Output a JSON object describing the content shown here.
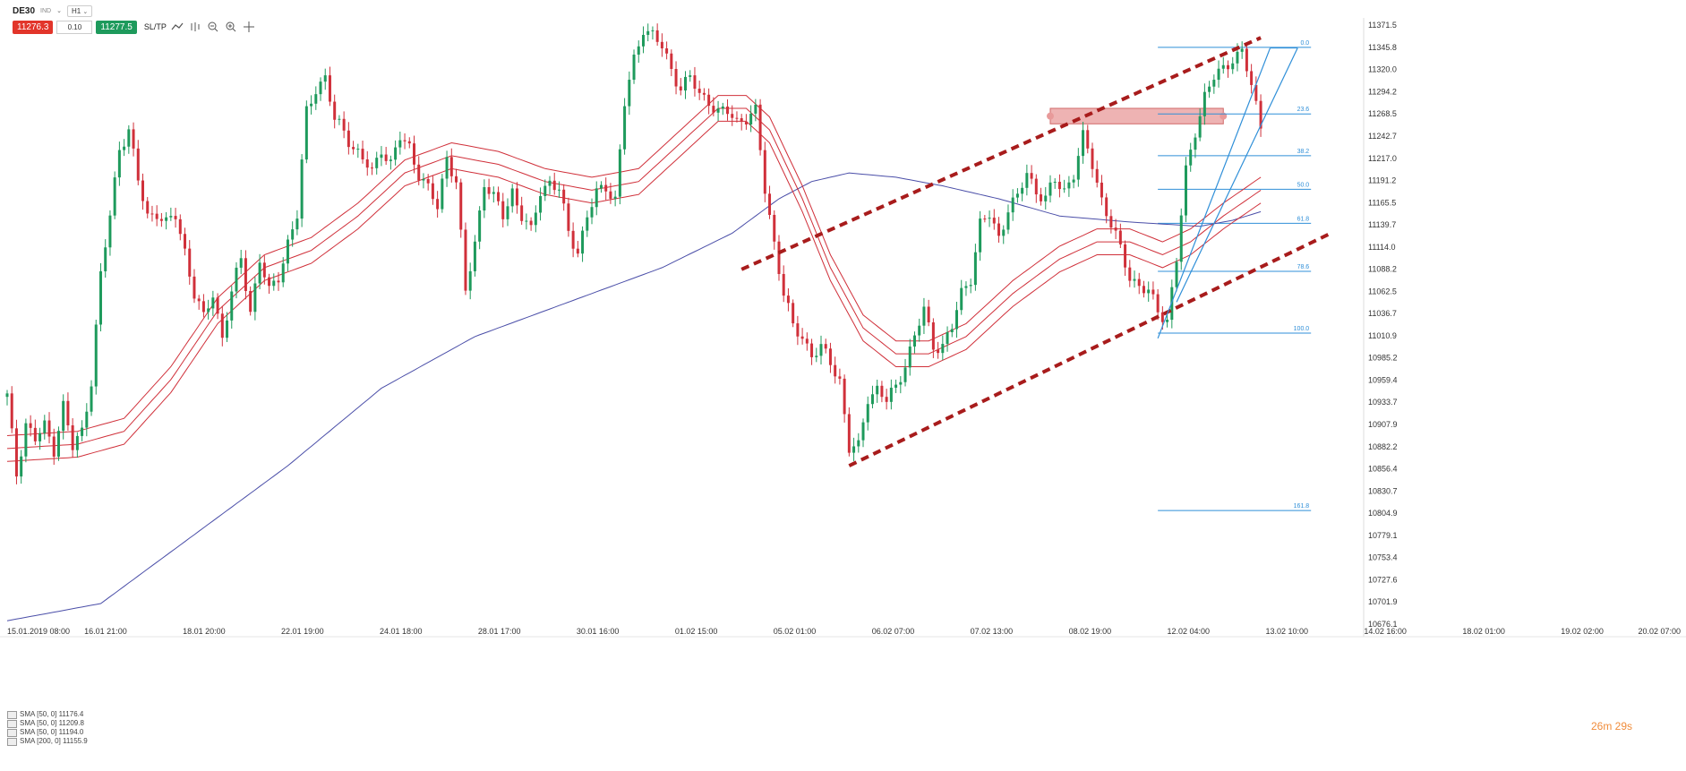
{
  "toolbar": {
    "symbol": "DE30",
    "tag": "IND",
    "timeframe": "H1",
    "sell_price": "11276.3",
    "quantity": "0.10",
    "buy_price": "11277.5",
    "sltp_label": "SL/TP",
    "tools": [
      "line-tool-icon",
      "chart-type-icon",
      "zoom-out-icon",
      "zoom-in-icon",
      "crosshair-icon"
    ]
  },
  "indicators": [
    {
      "label": "SMA [50, 0] 11176.4"
    },
    {
      "label": "SMA [50, 0] 11209.8"
    },
    {
      "label": "SMA [50, 0] 11194.0"
    },
    {
      "label": "SMA [200, 0] 11155.9"
    }
  ],
  "timer": "26m 29s",
  "colors": {
    "up": "#1e9a5c",
    "down": "#d0303a",
    "envelope": "#d0303a",
    "sma200": "#4a4ea8",
    "channel": "#a81c1c",
    "fib": "#2f8fd8",
    "zone": "#e89a9a"
  },
  "chart_data": {
    "type": "candlestick",
    "title": "",
    "xlabel": "",
    "ylabel": "",
    "ylim": [
      10676.1,
      11380.0
    ],
    "y_ticks": [
      11371.5,
      11345.8,
      11320.0,
      11294.2,
      11268.5,
      11242.7,
      11217.0,
      11191.2,
      11165.5,
      11139.7,
      11114.0,
      11088.2,
      11062.5,
      11036.7,
      11010.9,
      10985.2,
      10959.4,
      10933.7,
      10907.9,
      10882.2,
      10856.4,
      10830.7,
      10804.9,
      10779.1,
      10753.4,
      10727.6,
      10701.9,
      10676.1
    ],
    "x_ticks": [
      "15.01.2019 08:00",
      "16.01 21:00",
      "18.01 20:00",
      "22.01 19:00",
      "24.01 18:00",
      "28.01 17:00",
      "30.01 16:00",
      "01.02 15:00",
      "05.02 01:00",
      "06.02 07:00",
      "07.02 13:00",
      "08.02 19:00",
      "12.02 04:00",
      "13.02 10:00",
      "14.02 16:00",
      "18.02 01:00",
      "19.02 02:00",
      "20.02 07:00"
    ],
    "price_path": [
      [
        0,
        10940
      ],
      [
        2,
        10850
      ],
      [
        4,
        10910
      ],
      [
        6,
        10890
      ],
      [
        8,
        10905
      ],
      [
        10,
        10880
      ],
      [
        12,
        10930
      ],
      [
        14,
        10880
      ],
      [
        16,
        10900
      ],
      [
        18,
        10960
      ],
      [
        20,
        11080
      ],
      [
        22,
        11150
      ],
      [
        24,
        11230
      ],
      [
        26,
        11250
      ],
      [
        28,
        11190
      ],
      [
        30,
        11150
      ],
      [
        32,
        11155
      ],
      [
        34,
        11140
      ],
      [
        36,
        11150
      ],
      [
        38,
        11110
      ],
      [
        40,
        11060
      ],
      [
        42,
        11030
      ],
      [
        44,
        11060
      ],
      [
        46,
        11010
      ],
      [
        48,
        11060
      ],
      [
        50,
        11100
      ],
      [
        52,
        11040
      ],
      [
        54,
        11100
      ],
      [
        56,
        11060
      ],
      [
        58,
        11080
      ],
      [
        60,
        11120
      ],
      [
        62,
        11150
      ],
      [
        64,
        11270
      ],
      [
        66,
        11300
      ],
      [
        68,
        11310
      ],
      [
        70,
        11260
      ],
      [
        72,
        11250
      ],
      [
        74,
        11230
      ],
      [
        76,
        11215
      ],
      [
        78,
        11200
      ],
      [
        80,
        11230
      ],
      [
        82,
        11210
      ],
      [
        84,
        11240
      ],
      [
        86,
        11230
      ],
      [
        88,
        11200
      ],
      [
        90,
        11180
      ],
      [
        92,
        11160
      ],
      [
        94,
        11220
      ],
      [
        96,
        11190
      ],
      [
        98,
        11060
      ],
      [
        100,
        11120
      ],
      [
        102,
        11190
      ],
      [
        104,
        11170
      ],
      [
        106,
        11150
      ],
      [
        108,
        11180
      ],
      [
        110,
        11150
      ],
      [
        112,
        11130
      ],
      [
        114,
        11180
      ],
      [
        116,
        11190
      ],
      [
        118,
        11180
      ],
      [
        120,
        11130
      ],
      [
        122,
        11110
      ],
      [
        124,
        11150
      ],
      [
        126,
        11175
      ],
      [
        128,
        11185
      ],
      [
        130,
        11170
      ],
      [
        132,
        11280
      ],
      [
        134,
        11330
      ],
      [
        136,
        11370
      ],
      [
        138,
        11360
      ],
      [
        140,
        11345
      ],
      [
        142,
        11320
      ],
      [
        144,
        11300
      ],
      [
        146,
        11310
      ],
      [
        148,
        11290
      ],
      [
        150,
        11285
      ],
      [
        152,
        11270
      ],
      [
        154,
        11270
      ],
      [
        156,
        11260
      ],
      [
        158,
        11265
      ],
      [
        160,
        11270
      ],
      [
        162,
        11180
      ],
      [
        164,
        11120
      ],
      [
        166,
        11060
      ],
      [
        168,
        11020
      ],
      [
        170,
        11010
      ],
      [
        172,
        10990
      ],
      [
        174,
        10995
      ],
      [
        176,
        10980
      ],
      [
        178,
        10960
      ],
      [
        180,
        10880
      ],
      [
        182,
        10880
      ],
      [
        184,
        10940
      ],
      [
        186,
        10950
      ],
      [
        188,
        10935
      ],
      [
        190,
        10950
      ],
      [
        192,
        10980
      ],
      [
        194,
        11010
      ],
      [
        196,
        11040
      ],
      [
        198,
        11000
      ],
      [
        200,
        11000
      ],
      [
        202,
        11020
      ],
      [
        204,
        11060
      ],
      [
        206,
        11080
      ],
      [
        208,
        11140
      ],
      [
        210,
        11150
      ],
      [
        212,
        11125
      ],
      [
        214,
        11160
      ],
      [
        216,
        11170
      ],
      [
        218,
        11200
      ],
      [
        220,
        11180
      ],
      [
        222,
        11170
      ],
      [
        224,
        11190
      ],
      [
        226,
        11180
      ],
      [
        228,
        11200
      ],
      [
        230,
        11240
      ],
      [
        232,
        11210
      ],
      [
        234,
        11170
      ],
      [
        236,
        11140
      ],
      [
        238,
        11110
      ],
      [
        240,
        11080
      ],
      [
        242,
        11070
      ],
      [
        244,
        11060
      ],
      [
        246,
        11040
      ],
      [
        248,
        11030
      ],
      [
        250,
        11100
      ],
      [
        252,
        11200
      ],
      [
        254,
        11250
      ],
      [
        256,
        11290
      ],
      [
        258,
        11310
      ],
      [
        260,
        11320
      ],
      [
        262,
        11335
      ],
      [
        264,
        11340
      ],
      [
        266,
        11300
      ],
      [
        268,
        11255
      ]
    ],
    "sma200": [
      [
        0,
        10680
      ],
      [
        20,
        10700
      ],
      [
        40,
        10780
      ],
      [
        60,
        10860
      ],
      [
        80,
        10950
      ],
      [
        100,
        11010
      ],
      [
        120,
        11050
      ],
      [
        140,
        11090
      ],
      [
        155,
        11130
      ],
      [
        165,
        11170
      ],
      [
        172,
        11190
      ],
      [
        180,
        11200
      ],
      [
        190,
        11195
      ],
      [
        200,
        11185
      ],
      [
        212,
        11170
      ],
      [
        225,
        11150
      ],
      [
        240,
        11143
      ],
      [
        255,
        11138
      ],
      [
        262,
        11145
      ],
      [
        268,
        11155
      ]
    ],
    "envelope_mid": [
      [
        0,
        10880
      ],
      [
        15,
        10885
      ],
      [
        25,
        10900
      ],
      [
        35,
        10960
      ],
      [
        45,
        11040
      ],
      [
        55,
        11090
      ],
      [
        65,
        11110
      ],
      [
        75,
        11150
      ],
      [
        85,
        11200
      ],
      [
        95,
        11220
      ],
      [
        105,
        11210
      ],
      [
        115,
        11190
      ],
      [
        125,
        11180
      ],
      [
        135,
        11190
      ],
      [
        145,
        11240
      ],
      [
        152,
        11275
      ],
      [
        158,
        11275
      ],
      [
        163,
        11250
      ],
      [
        170,
        11170
      ],
      [
        176,
        11090
      ],
      [
        183,
        11020
      ],
      [
        190,
        10990
      ],
      [
        197,
        10990
      ],
      [
        205,
        11010
      ],
      [
        215,
        11060
      ],
      [
        225,
        11100
      ],
      [
        233,
        11120
      ],
      [
        240,
        11120
      ],
      [
        247,
        11105
      ],
      [
        253,
        11120
      ],
      [
        260,
        11150
      ],
      [
        268,
        11180
      ]
    ],
    "envelope_offset": 15,
    "fibonacci": [
      {
        "level": "0.0",
        "value": 11345.8
      },
      {
        "level": "23.6",
        "value": 11268.5
      },
      {
        "level": "38.2",
        "value": 11220.0
      },
      {
        "level": "50.0",
        "value": 11181.0
      },
      {
        "level": "61.8",
        "value": 11141.5
      },
      {
        "level": "78.6",
        "value": 11085.8
      },
      {
        "level": "100.0",
        "value": 11014.0
      },
      {
        "level": "161.8",
        "value": 10808.0
      }
    ],
    "fib_x_range": [
      246,
      273
    ],
    "resistance_zone": {
      "x_range": [
        223,
        260
      ],
      "y_range": [
        11257,
        11275
      ]
    },
    "channel_upper": [
      [
        157,
        11088
      ],
      [
        268,
        11357
      ]
    ],
    "channel_lower": [
      [
        180,
        10860
      ],
      [
        283,
        11130
      ]
    ],
    "trend_line": [
      [
        246,
        11008
      ],
      [
        270,
        11345
      ]
    ]
  }
}
